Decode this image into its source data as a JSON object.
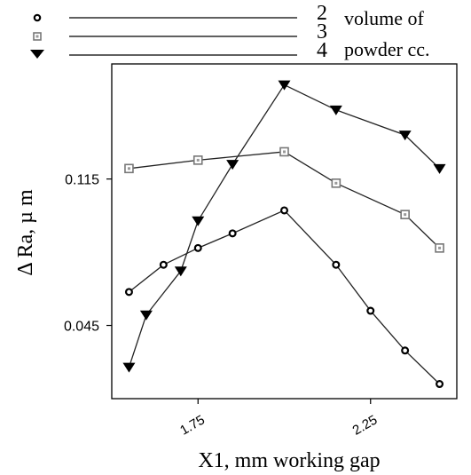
{
  "chart_data": {
    "type": "line",
    "xlabel": "X1, mm working gap",
    "ylabel": "Δ Ra, µ m",
    "xlim": [
      1.5,
      2.5
    ],
    "ylim": [
      0.01,
      0.17
    ],
    "xticks": [
      1.75,
      2.25
    ],
    "xtick_labels": [
      "1.75",
      "2.25"
    ],
    "yticks": [
      0.045,
      0.115
    ],
    "ytick_labels": [
      "0.045",
      "0.115"
    ],
    "grid": false,
    "legend_position": "top",
    "legend_title": [
      "volume of",
      "powder cc."
    ],
    "series": [
      {
        "name": "2",
        "marker": "circle",
        "x": [
          1.55,
          1.65,
          1.75,
          1.85,
          2.0,
          2.15,
          2.25,
          2.35,
          2.45
        ],
        "y": [
          0.061,
          0.074,
          0.082,
          0.089,
          0.1,
          0.074,
          0.052,
          0.033,
          0.017
        ]
      },
      {
        "name": "3",
        "marker": "square",
        "x": [
          1.55,
          1.75,
          2.0,
          2.15,
          2.35,
          2.45
        ],
        "y": [
          0.12,
          0.124,
          0.128,
          0.113,
          0.098,
          0.082
        ]
      },
      {
        "name": "4",
        "marker": "triangle-down",
        "x": [
          1.55,
          1.6,
          1.7,
          1.75,
          1.85,
          2.0,
          2.15,
          2.35,
          2.45
        ],
        "y": [
          0.025,
          0.05,
          0.071,
          0.095,
          0.122,
          0.16,
          0.148,
          0.136,
          0.12
        ]
      }
    ]
  }
}
